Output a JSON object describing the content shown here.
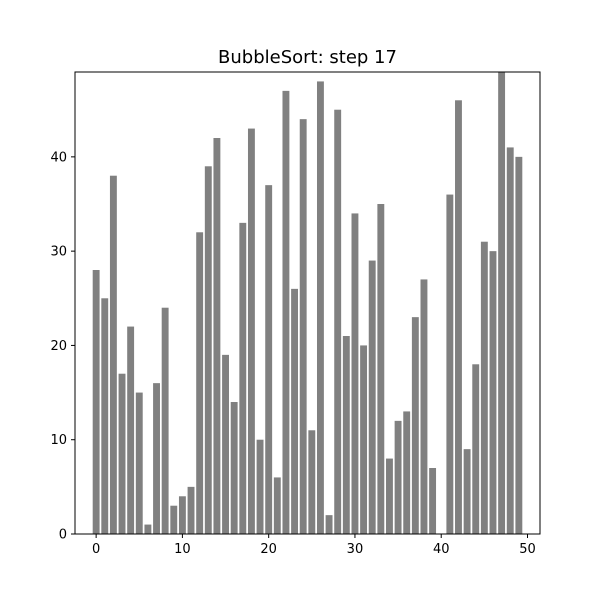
{
  "chart_data": {
    "type": "bar",
    "title": "BubbleSort: step 17",
    "xlabel": "",
    "ylabel": "",
    "x": [
      0,
      1,
      2,
      3,
      4,
      5,
      6,
      7,
      8,
      9,
      10,
      11,
      12,
      13,
      14,
      15,
      16,
      17,
      18,
      19,
      20,
      21,
      22,
      23,
      24,
      25,
      26,
      27,
      28,
      29,
      30,
      31,
      32,
      33,
      34,
      35,
      36,
      37,
      38,
      39,
      40,
      41,
      42,
      43,
      44,
      45,
      46,
      47,
      48,
      49
    ],
    "values": [
      28,
      25,
      38,
      17,
      22,
      15,
      1,
      16,
      24,
      3,
      4,
      5,
      32,
      39,
      42,
      19,
      14,
      33,
      43,
      10,
      37,
      6,
      47,
      26,
      44,
      11,
      48,
      2,
      45,
      21,
      34,
      20,
      29,
      35,
      8,
      12,
      13,
      23,
      27,
      7,
      0,
      36,
      46,
      9,
      18,
      31,
      30,
      49,
      41,
      40
    ],
    "bar_color": "#808080",
    "xlim": [
      -2.45,
      51.45
    ],
    "ylim": [
      0,
      49
    ],
    "xticks": [
      0,
      10,
      20,
      30,
      40,
      50
    ],
    "yticks": [
      0,
      10,
      20,
      30,
      40
    ],
    "grid": false,
    "legend": "none"
  }
}
